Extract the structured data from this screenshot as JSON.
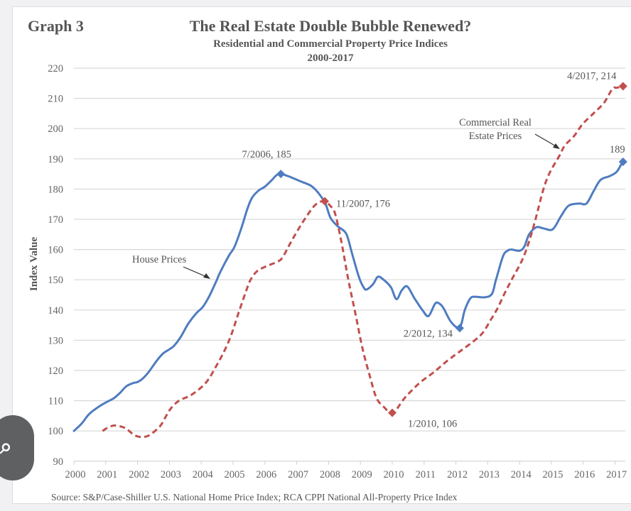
{
  "chart_data": {
    "type": "line",
    "graph_label": "Graph 3",
    "title": "The Real Estate Double Bubble Renewed?",
    "subtitle": "Residential and Commercial Property Price Indices",
    "subtitle2": "2000-2017",
    "xlabel": "",
    "ylabel": "Index Value",
    "xlim": [
      2000,
      2017.3
    ],
    "ylim": [
      90,
      220
    ],
    "x_ticks": [
      "2000",
      "2001",
      "2002",
      "2003",
      "2004",
      "2005",
      "2006",
      "2007",
      "2008",
      "2009",
      "2010",
      "2011",
      "2012",
      "2013",
      "2014",
      "2015",
      "2016",
      "2017"
    ],
    "y_ticks": [
      "90",
      "100",
      "110",
      "120",
      "130",
      "140",
      "150",
      "160",
      "170",
      "180",
      "190",
      "200",
      "210",
      "220"
    ],
    "grid": true,
    "legend": "none (inline labels)",
    "series": [
      {
        "name": "House Prices",
        "style": "solid",
        "color": "#4f7cc0",
        "points": [
          [
            2000.0,
            100
          ],
          [
            2000.25,
            102.5
          ],
          [
            2000.47,
            105.5
          ],
          [
            2000.75,
            107.8
          ],
          [
            2001.0,
            109.4
          ],
          [
            2001.25,
            110.8
          ],
          [
            2001.45,
            112.6
          ],
          [
            2001.65,
            114.8
          ],
          [
            2001.85,
            115.8
          ],
          [
            2002.0,
            116.2
          ],
          [
            2002.15,
            117.2
          ],
          [
            2002.35,
            119.5
          ],
          [
            2002.6,
            123.2
          ],
          [
            2002.8,
            125.6
          ],
          [
            2003.0,
            127
          ],
          [
            2003.15,
            128.2
          ],
          [
            2003.35,
            131
          ],
          [
            2003.6,
            135.6
          ],
          [
            2003.85,
            139
          ],
          [
            2004.05,
            141
          ],
          [
            2004.25,
            144.5
          ],
          [
            2004.45,
            149
          ],
          [
            2004.6,
            152.6
          ],
          [
            2004.87,
            158
          ],
          [
            2005.05,
            161
          ],
          [
            2005.27,
            167.4
          ],
          [
            2005.45,
            173.5
          ],
          [
            2005.6,
            177.2
          ],
          [
            2005.8,
            179.5
          ],
          [
            2006.0,
            180.8
          ],
          [
            2006.2,
            182.8
          ],
          [
            2006.43,
            185
          ],
          [
            2006.72,
            184.3
          ],
          [
            2006.95,
            183.3
          ],
          [
            2007.16,
            182.4
          ],
          [
            2007.46,
            181
          ],
          [
            2007.68,
            178.7
          ],
          [
            2007.9,
            175.2
          ],
          [
            2008.06,
            170.5
          ],
          [
            2008.28,
            167.8
          ],
          [
            2008.5,
            166
          ],
          [
            2008.6,
            164
          ],
          [
            2008.73,
            159
          ],
          [
            2008.95,
            151
          ],
          [
            2009.1,
            147.5
          ],
          [
            2009.2,
            146.8
          ],
          [
            2009.4,
            148.6
          ],
          [
            2009.55,
            151
          ],
          [
            2009.73,
            150
          ],
          [
            2009.96,
            147.5
          ],
          [
            2010.13,
            143.6
          ],
          [
            2010.3,
            146.5
          ],
          [
            2010.47,
            147.8
          ],
          [
            2010.69,
            144
          ],
          [
            2010.96,
            139.8
          ],
          [
            2011.14,
            138
          ],
          [
            2011.34,
            142
          ],
          [
            2011.45,
            142.3
          ],
          [
            2011.6,
            140.8
          ],
          [
            2011.85,
            136
          ],
          [
            2012.12,
            134.3
          ],
          [
            2012.28,
            140
          ],
          [
            2012.45,
            143.8
          ],
          [
            2012.59,
            144.4
          ],
          [
            2012.9,
            144.2
          ],
          [
            2013.13,
            145.3
          ],
          [
            2013.26,
            150
          ],
          [
            2013.48,
            157.8
          ],
          [
            2013.62,
            159.6
          ],
          [
            2013.75,
            160
          ],
          [
            2014.0,
            159.6
          ],
          [
            2014.15,
            161
          ],
          [
            2014.3,
            165
          ],
          [
            2014.53,
            167.4
          ],
          [
            2014.75,
            167
          ],
          [
            2015.04,
            166.7
          ],
          [
            2015.3,
            171
          ],
          [
            2015.54,
            174.5
          ],
          [
            2015.87,
            175.2
          ],
          [
            2016.1,
            175.2
          ],
          [
            2016.32,
            179.2
          ],
          [
            2016.54,
            183
          ],
          [
            2016.83,
            184.3
          ],
          [
            2017.05,
            185.7
          ],
          [
            2017.21,
            188.5
          ]
        ]
      },
      {
        "name": "Commercial Real Estate Prices",
        "style": "dashed",
        "color": "#c0504d",
        "points": [
          [
            2000.9,
            100
          ],
          [
            2001.1,
            101.3
          ],
          [
            2001.3,
            101.8
          ],
          [
            2001.6,
            101
          ],
          [
            2001.85,
            99
          ],
          [
            2002.0,
            98.2
          ],
          [
            2002.2,
            98
          ],
          [
            2002.4,
            98.8
          ],
          [
            2002.7,
            101.5
          ],
          [
            2002.9,
            105
          ],
          [
            2003.05,
            107.5
          ],
          [
            2003.3,
            110
          ],
          [
            2003.7,
            112
          ],
          [
            2004.15,
            116
          ],
          [
            2004.5,
            122
          ],
          [
            2004.75,
            127
          ],
          [
            2004.95,
            132
          ],
          [
            2005.17,
            139
          ],
          [
            2005.4,
            146
          ],
          [
            2005.55,
            150
          ],
          [
            2005.75,
            152.8
          ],
          [
            2006.05,
            154.5
          ],
          [
            2006.4,
            156
          ],
          [
            2006.56,
            157.5
          ],
          [
            2006.83,
            162.7
          ],
          [
            2007.16,
            168.6
          ],
          [
            2007.5,
            173.8
          ],
          [
            2007.7,
            175.6
          ],
          [
            2007.88,
            176
          ],
          [
            2008.05,
            174.5
          ],
          [
            2008.2,
            172
          ],
          [
            2008.4,
            162.7
          ],
          [
            2008.62,
            150
          ],
          [
            2008.84,
            139
          ],
          [
            2009.06,
            127.5
          ],
          [
            2009.3,
            118
          ],
          [
            2009.5,
            111
          ],
          [
            2009.73,
            108
          ],
          [
            2010.02,
            106
          ],
          [
            2010.4,
            111
          ],
          [
            2010.85,
            115.8
          ],
          [
            2011.29,
            119.3
          ],
          [
            2011.74,
            123.3
          ],
          [
            2012.19,
            126.8
          ],
          [
            2012.63,
            130.3
          ],
          [
            2012.86,
            132.7
          ],
          [
            2013.08,
            136.5
          ],
          [
            2013.3,
            140.4
          ],
          [
            2013.53,
            145.5
          ],
          [
            2013.75,
            150
          ],
          [
            2014.08,
            156.5
          ],
          [
            2014.3,
            162.7
          ],
          [
            2014.5,
            170
          ],
          [
            2014.75,
            180
          ],
          [
            2014.95,
            185.5
          ],
          [
            2015.25,
            191
          ],
          [
            2015.42,
            194.4
          ],
          [
            2015.71,
            197.5
          ],
          [
            2015.98,
            201.5
          ],
          [
            2016.32,
            205
          ],
          [
            2016.65,
            208.5
          ],
          [
            2016.92,
            213.2
          ],
          [
            2017.05,
            213.5
          ],
          [
            2017.28,
            214
          ]
        ]
      }
    ],
    "markers": [
      {
        "series": "House Prices",
        "x": 2006.5,
        "y": 185,
        "label": "7/2006, 185"
      },
      {
        "series": "House Prices",
        "x": 2012.12,
        "y": 134,
        "label": "2/2012, 134"
      },
      {
        "series": "House Prices",
        "x": 2017.25,
        "y": 189,
        "label": "189"
      },
      {
        "series": "Commercial Real Estate Prices",
        "x": 2007.88,
        "y": 176,
        "label": "11/2007, 176"
      },
      {
        "series": "Commercial Real Estate Prices",
        "x": 2010.0,
        "y": 106,
        "label": "1/2010, 106"
      },
      {
        "series": "Commercial Real Estate Prices",
        "x": 2017.25,
        "y": 214,
        "label": "4/2017, 214"
      }
    ],
    "annotations": [
      {
        "text": "House Prices",
        "points_to": "House Prices"
      },
      {
        "text_lines": [
          "Commercial Real",
          "Estate Prices"
        ],
        "points_to": "Commercial Real Estate Prices"
      }
    ],
    "source": "Source: S&P/Case-Shiller U.S. National Home Price Index; RCA CPPI National All-Property Price Index"
  },
  "overlay": {
    "lens_button_icon": "lens-icon"
  }
}
